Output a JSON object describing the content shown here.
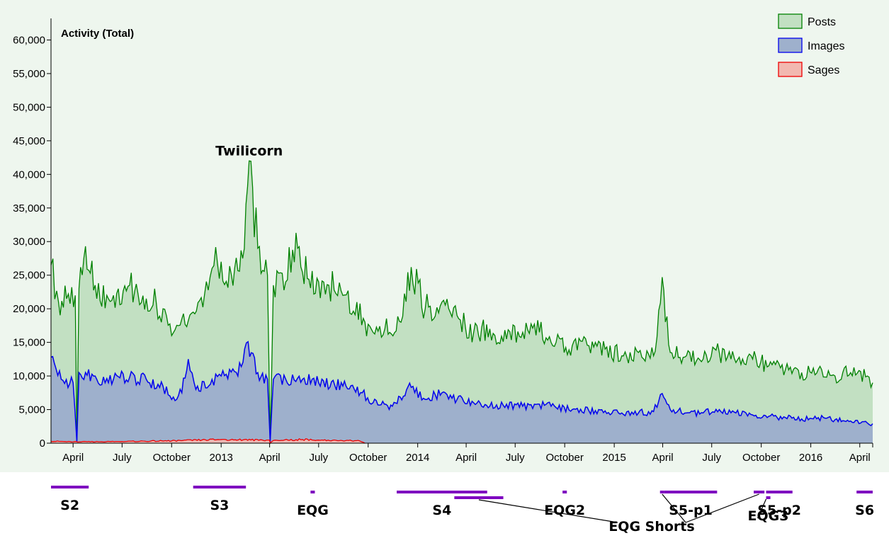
{
  "chart_data": {
    "type": "area",
    "title": "Activity (Total)",
    "ylim": [
      0,
      63000
    ],
    "y_ticks": [
      0,
      5000,
      10000,
      15000,
      20000,
      25000,
      30000,
      35000,
      40000,
      45000,
      50000,
      55000,
      60000
    ],
    "y_tick_labels": [
      "0",
      "5,000",
      "10,000",
      "15,000",
      "20,000",
      "25,000",
      "30,000",
      "35,000",
      "40,000",
      "45,000",
      "50,000",
      "55,000",
      "60,000"
    ],
    "xlim": [
      "2012-02-20",
      "2016-04-25"
    ],
    "x_ticks": [
      {
        "date": "2012-04-01",
        "label": "April"
      },
      {
        "date": "2012-07-01",
        "label": "July"
      },
      {
        "date": "2012-10-01",
        "label": "October"
      },
      {
        "date": "2013-01-01",
        "label": "2013"
      },
      {
        "date": "2013-04-01",
        "label": "April"
      },
      {
        "date": "2013-07-01",
        "label": "July"
      },
      {
        "date": "2013-10-01",
        "label": "October"
      },
      {
        "date": "2014-01-01",
        "label": "2014"
      },
      {
        "date": "2014-04-01",
        "label": "April"
      },
      {
        "date": "2014-07-01",
        "label": "July"
      },
      {
        "date": "2014-10-01",
        "label": "October"
      },
      {
        "date": "2015-01-01",
        "label": "2015"
      },
      {
        "date": "2015-04-01",
        "label": "April"
      },
      {
        "date": "2015-07-01",
        "label": "July"
      },
      {
        "date": "2015-10-01",
        "label": "October"
      },
      {
        "date": "2016-01-01",
        "label": "2016"
      },
      {
        "date": "2016-04-01",
        "label": "April"
      }
    ],
    "grid": false,
    "legend_position": "top-right",
    "series": [
      {
        "name": "Posts",
        "color": "#008000",
        "fill": "#c2e0c2",
        "points": [
          [
            "2012-02-20",
            26500
          ],
          [
            "2012-03-05",
            21000
          ],
          [
            "2012-03-20",
            21500
          ],
          [
            "2012-04-05",
            22000
          ],
          [
            "2012-04-08",
            300
          ],
          [
            "2012-04-12",
            23000
          ],
          [
            "2012-04-24",
            29300
          ],
          [
            "2012-05-15",
            21500
          ],
          [
            "2012-06-15",
            22000
          ],
          [
            "2012-07-15",
            23500
          ],
          [
            "2012-08-15",
            21500
          ],
          [
            "2012-09-15",
            20000
          ],
          [
            "2012-10-01",
            16000
          ],
          [
            "2012-10-20",
            18500
          ],
          [
            "2012-11-10",
            19500
          ],
          [
            "2012-12-01",
            22000
          ],
          [
            "2012-12-15",
            26000
          ],
          [
            "2013-01-01",
            27000
          ],
          [
            "2013-01-20",
            25000
          ],
          [
            "2013-02-10",
            27500
          ],
          [
            "2013-02-22",
            42000
          ],
          [
            "2013-03-10",
            29000
          ],
          [
            "2013-03-28",
            25000
          ],
          [
            "2013-04-02",
            300
          ],
          [
            "2013-04-08",
            23500
          ],
          [
            "2013-05-01",
            24000
          ],
          [
            "2013-05-20",
            31300
          ],
          [
            "2013-06-10",
            24500
          ],
          [
            "2013-07-01",
            24000
          ],
          [
            "2013-07-20",
            23500
          ],
          [
            "2013-08-15",
            22000
          ],
          [
            "2013-09-10",
            21000
          ],
          [
            "2013-09-25",
            18000
          ],
          [
            "2013-10-10",
            16500
          ],
          [
            "2013-11-01",
            17000
          ],
          [
            "2013-12-01",
            18000
          ],
          [
            "2013-12-20",
            26200
          ],
          [
            "2014-01-15",
            20000
          ],
          [
            "2014-02-15",
            21000
          ],
          [
            "2014-03-15",
            19000
          ],
          [
            "2014-04-15",
            16500
          ],
          [
            "2014-05-15",
            17000
          ],
          [
            "2014-06-15",
            15500
          ],
          [
            "2014-07-15",
            16500
          ],
          [
            "2014-08-15",
            16500
          ],
          [
            "2014-09-15",
            15000
          ],
          [
            "2014-10-15",
            14500
          ],
          [
            "2014-11-15",
            14500
          ],
          [
            "2014-12-15",
            14000
          ],
          [
            "2015-01-15",
            13000
          ],
          [
            "2015-02-15",
            13500
          ],
          [
            "2015-03-15",
            13000
          ],
          [
            "2015-03-31",
            24700
          ],
          [
            "2015-04-15",
            13500
          ],
          [
            "2015-05-15",
            13000
          ],
          [
            "2015-06-15",
            12500
          ],
          [
            "2015-07-15",
            13500
          ],
          [
            "2015-08-15",
            12000
          ],
          [
            "2015-09-15",
            12500
          ],
          [
            "2015-10-15",
            11500
          ],
          [
            "2015-11-15",
            11000
          ],
          [
            "2015-12-15",
            10500
          ],
          [
            "2016-01-15",
            11000
          ],
          [
            "2016-02-15",
            10000
          ],
          [
            "2016-03-15",
            10500
          ],
          [
            "2016-04-15",
            10000
          ],
          [
            "2016-04-25",
            9000
          ]
        ]
      },
      {
        "name": "Images",
        "color": "#0000ee",
        "fill": "#9eb0cc",
        "points": [
          [
            "2012-02-20",
            12800
          ],
          [
            "2012-03-10",
            9500
          ],
          [
            "2012-04-01",
            9000
          ],
          [
            "2012-04-08",
            200
          ],
          [
            "2012-04-12",
            10500
          ],
          [
            "2012-05-15",
            9500
          ],
          [
            "2012-06-15",
            9500
          ],
          [
            "2012-07-15",
            9800
          ],
          [
            "2012-08-15",
            9500
          ],
          [
            "2012-09-15",
            8500
          ],
          [
            "2012-10-01",
            6500
          ],
          [
            "2012-10-20",
            7500
          ],
          [
            "2012-11-01",
            12500
          ],
          [
            "2012-11-15",
            8000
          ],
          [
            "2012-12-15",
            9500
          ],
          [
            "2013-01-01",
            10000
          ],
          [
            "2013-02-01",
            10000
          ],
          [
            "2013-02-20",
            15100
          ],
          [
            "2013-03-10",
            10500
          ],
          [
            "2013-03-28",
            9500
          ],
          [
            "2013-04-02",
            200
          ],
          [
            "2013-04-08",
            9500
          ],
          [
            "2013-05-01",
            9500
          ],
          [
            "2013-06-01",
            9500
          ],
          [
            "2013-07-01",
            9000
          ],
          [
            "2013-08-15",
            8500
          ],
          [
            "2013-09-20",
            7500
          ],
          [
            "2013-10-10",
            6000
          ],
          [
            "2013-11-15",
            5500
          ],
          [
            "2013-12-20",
            8300
          ],
          [
            "2014-01-15",
            6500
          ],
          [
            "2014-02-15",
            7500
          ],
          [
            "2014-03-15",
            6500
          ],
          [
            "2014-04-15",
            6000
          ],
          [
            "2014-05-15",
            5500
          ],
          [
            "2014-06-15",
            5800
          ],
          [
            "2014-07-15",
            5500
          ],
          [
            "2014-08-15",
            5800
          ],
          [
            "2014-09-15",
            5300
          ],
          [
            "2014-10-15",
            5000
          ],
          [
            "2014-11-15",
            4800
          ],
          [
            "2014-12-15",
            4800
          ],
          [
            "2015-01-15",
            4500
          ],
          [
            "2015-02-15",
            4500
          ],
          [
            "2015-03-15",
            4700
          ],
          [
            "2015-03-31",
            7400
          ],
          [
            "2015-04-15",
            5000
          ],
          [
            "2015-05-15",
            4500
          ],
          [
            "2015-06-15",
            4500
          ],
          [
            "2015-07-15",
            5000
          ],
          [
            "2015-08-15",
            4500
          ],
          [
            "2015-09-15",
            4200
          ],
          [
            "2015-10-15",
            4000
          ],
          [
            "2015-11-15",
            3800
          ],
          [
            "2015-12-15",
            3600
          ],
          [
            "2016-01-15",
            3800
          ],
          [
            "2016-02-15",
            3500
          ],
          [
            "2016-03-15",
            3300
          ],
          [
            "2016-04-15",
            3000
          ],
          [
            "2016-04-25",
            2900
          ]
        ]
      },
      {
        "name": "Sages",
        "color": "#ee0000",
        "fill": "#f2b8b0",
        "points": [
          [
            "2012-02-20",
            300
          ],
          [
            "2012-04-01",
            200
          ],
          [
            "2012-07-01",
            250
          ],
          [
            "2012-10-01",
            350
          ],
          [
            "2013-01-01",
            550
          ],
          [
            "2013-04-01",
            450
          ],
          [
            "2013-04-02",
            0
          ],
          [
            "2013-04-08",
            400
          ],
          [
            "2013-06-01",
            550
          ],
          [
            "2013-07-01",
            450
          ],
          [
            "2013-09-15",
            350
          ],
          [
            "2013-09-25",
            0
          ]
        ]
      }
    ],
    "annotations": [
      {
        "text": "Twilicorn",
        "date": "2013-02-22",
        "value": 42000
      }
    ],
    "seasons": [
      {
        "label": "S2",
        "start": "2012-02-20",
        "end": "2012-04-30",
        "row": 0
      },
      {
        "label": "S3",
        "start": "2012-11-10",
        "end": "2013-02-16",
        "row": 0
      },
      {
        "label": "EQG",
        "start": "2013-06-16",
        "end": "2013-06-24",
        "row": 1
      },
      {
        "label": "S4",
        "start": "2013-11-23",
        "end": "2014-05-10",
        "row": 1
      },
      {
        "label": "",
        "start": "2014-03-10",
        "end": "2014-06-09",
        "row": 2
      },
      {
        "label": "EQG2",
        "start": "2014-09-27",
        "end": "2014-10-05",
        "row": 1
      },
      {
        "label": "",
        "start": "2015-03-27",
        "end": "2015-04-04",
        "row": 1
      },
      {
        "label": "S5-p1",
        "start": "2015-04-04",
        "end": "2015-07-11",
        "row": 1
      },
      {
        "label": "",
        "start": "2015-09-17",
        "end": "2015-10-07",
        "row": 1
      },
      {
        "label": "EQG3",
        "start": "2015-10-10",
        "end": "2015-10-18",
        "row": 2
      },
      {
        "label": "S5-p2",
        "start": "2015-10-10",
        "end": "2015-11-28",
        "row": 1
      },
      {
        "label": "S6",
        "start": "2016-03-26",
        "end": "2016-04-25",
        "row": 1
      }
    ],
    "season_callout": {
      "text": "EQG Shorts"
    }
  }
}
